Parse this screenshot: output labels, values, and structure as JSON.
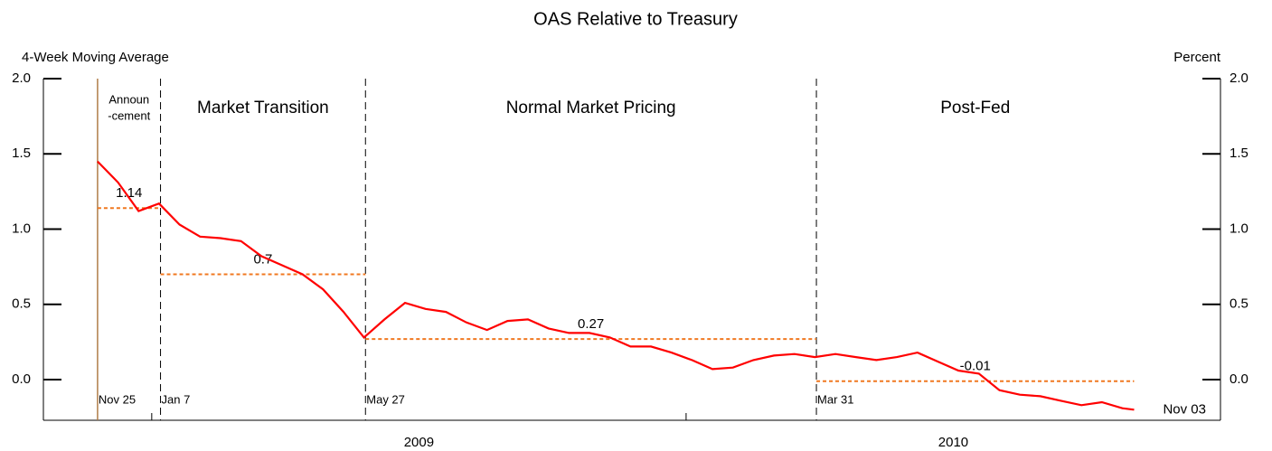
{
  "chart_data": {
    "type": "line",
    "title": "OAS Relative to Treasury",
    "y_label": "4-Week Moving Average",
    "y2_label": "Percent",
    "xlim": [
      "2008-10-19",
      "2011-01-01"
    ],
    "xticks": [
      "2009-01-01",
      "2010-01-01",
      "2011-01-01"
    ],
    "year_labels": [
      "2009",
      "2010"
    ],
    "ylim": [
      -0.27,
      2
    ],
    "yticks": [
      {
        "value": 0,
        "label": "0.0"
      },
      {
        "value": 0.5,
        "label": "0.5"
      },
      {
        "value": 1,
        "label": "1.0"
      },
      {
        "value": 1.5,
        "label": "1.5"
      },
      {
        "value": 2,
        "label": "2.0"
      }
    ],
    "y2lim": [
      -0.27,
      2
    ],
    "y2ticks": [
      {
        "value": 0,
        "label": "0.0"
      },
      {
        "value": 0.5,
        "label": "0.5"
      },
      {
        "value": 1,
        "label": "1.0"
      },
      {
        "value": 1.5,
        "label": "1.5"
      },
      {
        "value": 2,
        "label": "2.0"
      }
    ],
    "series": [
      {
        "name": "OAS",
        "color": "#ff0000",
        "end_label": "Nov 03",
        "x": [
          "2008-11-25",
          "2008-12-09",
          "2008-12-23",
          "2009-01-06",
          "2009-01-20",
          "2009-02-03",
          "2009-02-17",
          "2009-03-03",
          "2009-03-17",
          "2009-03-31",
          "2009-04-14",
          "2009-04-28",
          "2009-05-12",
          "2009-05-26",
          "2009-06-09",
          "2009-06-23",
          "2009-07-07",
          "2009-07-21",
          "2009-08-04",
          "2009-08-18",
          "2009-09-01",
          "2009-09-15",
          "2009-09-29",
          "2009-10-13",
          "2009-10-27",
          "2009-11-10",
          "2009-11-24",
          "2009-12-08",
          "2009-12-22",
          "2010-01-05",
          "2010-01-19",
          "2010-02-02",
          "2010-02-16",
          "2010-03-02",
          "2010-03-16",
          "2010-03-30",
          "2010-04-13",
          "2010-04-27",
          "2010-05-11",
          "2010-05-25",
          "2010-06-08",
          "2010-06-22",
          "2010-07-06",
          "2010-07-20",
          "2010-08-03",
          "2010-08-17",
          "2010-08-31",
          "2010-09-14",
          "2010-09-28",
          "2010-10-12",
          "2010-10-26",
          "2010-11-03"
        ],
        "values": [
          1.45,
          1.31,
          1.12,
          1.17,
          1.03,
          0.95,
          0.94,
          0.92,
          0.82,
          0.76,
          0.7,
          0.6,
          0.45,
          0.28,
          0.4,
          0.51,
          0.47,
          0.45,
          0.38,
          0.33,
          0.39,
          0.4,
          0.34,
          0.31,
          0.31,
          0.28,
          0.22,
          0.22,
          0.18,
          0.13,
          0.07,
          0.08,
          0.13,
          0.16,
          0.17,
          0.15,
          0.17,
          0.15,
          0.13,
          0.15,
          0.18,
          0.12,
          0.06,
          0.04,
          -0.07,
          -0.1,
          -0.11,
          -0.14,
          -0.17,
          -0.15,
          -0.19,
          -0.2
        ]
      }
    ],
    "events": [
      {
        "date": "2008-11-25",
        "label": "Nov 25",
        "style": "solid",
        "color": "#b07d48"
      },
      {
        "date": "2009-01-07",
        "label": "Jan 7",
        "style": "dashed",
        "color": "#000000"
      },
      {
        "date": "2009-05-27",
        "label": "May 27",
        "style": "dashed",
        "color": "#000000"
      },
      {
        "date": "2010-03-31",
        "label": "Mar 31",
        "style": "dashed",
        "color": "#000000"
      }
    ],
    "average_color": "#f07820",
    "periods": [
      {
        "start": "2008-11-25",
        "end": "2009-01-07",
        "label": [
          "Announ",
          "-cement"
        ],
        "average": 1.14
      },
      {
        "start": "2009-01-07",
        "end": "2009-05-27",
        "label": [
          "Market Transition"
        ],
        "average": 0.7
      },
      {
        "start": "2009-05-27",
        "end": "2010-03-31",
        "label": [
          "Normal Market Pricing"
        ],
        "average": 0.27
      },
      {
        "start": "2010-03-31",
        "end": "2010-11-03",
        "label": [
          "Post-Fed"
        ],
        "average": -0.01
      }
    ]
  }
}
